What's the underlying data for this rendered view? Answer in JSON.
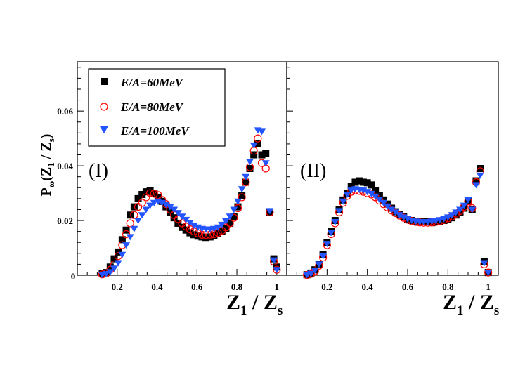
{
  "chart_data": {
    "type": "scatter",
    "ylabel_main": "P",
    "ylabel_sub": "ω",
    "ylabel_paren": "(Z",
    "ylabel_sub2": "1",
    "ylabel_rest": " / Z",
    "ylabel_sub3": "s",
    "ylabel_close": ")",
    "xlabel_main": "Z",
    "xlabel_sub": "1",
    "xlabel_mid": " / Z",
    "xlabel_sub2": "s",
    "xlim": [
      0,
      1.05
    ],
    "ylim": [
      0,
      0.078
    ],
    "y_ticks": [
      0,
      0.02,
      0.04,
      0.06
    ],
    "y_tick_labels": [
      "0",
      "0.02",
      "0.04",
      "0.06"
    ],
    "x_ticks": [
      0.2,
      0.4,
      0.6,
      0.8,
      1.0
    ],
    "x_tick_labels": [
      "0.2",
      "0.4",
      "0.6",
      "0.8",
      "1"
    ],
    "origin_label": "0",
    "legend": [
      {
        "label": "E/A=60MeV",
        "marker": "square",
        "color": "#000000"
      },
      {
        "label": "E/A=80MeV",
        "marker": "circle",
        "color": "#ff0000"
      },
      {
        "label": "E/A=100MeV",
        "marker": "triangle",
        "color": "#2255ff"
      }
    ],
    "panels": [
      {
        "label": "(I)",
        "series": [
          {
            "name": "E/A=60MeV",
            "x": [
              0.125,
              0.145,
              0.165,
              0.185,
              0.205,
              0.225,
              0.245,
              0.265,
              0.285,
              0.305,
              0.325,
              0.345,
              0.365,
              0.385,
              0.405,
              0.425,
              0.445,
              0.465,
              0.485,
              0.505,
              0.525,
              0.545,
              0.565,
              0.585,
              0.605,
              0.625,
              0.645,
              0.665,
              0.685,
              0.705,
              0.725,
              0.745,
              0.765,
              0.785,
              0.805,
              0.825,
              0.845,
              0.865,
              0.885,
              0.905,
              0.925,
              0.945,
              0.965,
              0.985,
              1.0
            ],
            "y": [
              0.0005,
              0.001,
              0.003,
              0.006,
              0.0085,
              0.013,
              0.0165,
              0.022,
              0.025,
              0.028,
              0.0295,
              0.0305,
              0.031,
              0.03,
              0.0285,
              0.027,
              0.025,
              0.023,
              0.021,
              0.019,
              0.0175,
              0.0165,
              0.0155,
              0.0148,
              0.0143,
              0.014,
              0.0138,
              0.014,
              0.0145,
              0.0153,
              0.016,
              0.017,
              0.019,
              0.0215,
              0.025,
              0.029,
              0.034,
              0.039,
              0.044,
              0.048,
              0.044,
              0.0445,
              0.023,
              0.006,
              0.003
            ]
          },
          {
            "name": "E/A=80MeV",
            "x": [
              0.125,
              0.145,
              0.165,
              0.185,
              0.205,
              0.225,
              0.245,
              0.265,
              0.285,
              0.305,
              0.325,
              0.345,
              0.365,
              0.385,
              0.405,
              0.425,
              0.445,
              0.465,
              0.485,
              0.505,
              0.525,
              0.545,
              0.565,
              0.585,
              0.605,
              0.625,
              0.645,
              0.665,
              0.685,
              0.705,
              0.725,
              0.745,
              0.765,
              0.785,
              0.805,
              0.825,
              0.845,
              0.865,
              0.885,
              0.905,
              0.925,
              0.945,
              0.965,
              0.985,
              1.0
            ],
            "y": [
              0.0003,
              0.0007,
              0.002,
              0.004,
              0.007,
              0.011,
              0.015,
              0.019,
              0.022,
              0.025,
              0.0265,
              0.0285,
              0.03,
              0.0298,
              0.0293,
              0.0275,
              0.026,
              0.024,
              0.022,
              0.0205,
              0.019,
              0.0178,
              0.0168,
              0.016,
              0.0153,
              0.0148,
              0.0147,
              0.0148,
              0.015,
              0.0155,
              0.0163,
              0.0175,
              0.019,
              0.021,
              0.0245,
              0.0285,
              0.034,
              0.0395,
              0.0455,
              0.05,
              0.041,
              0.039,
              0.023,
              0.005,
              0.002
            ]
          },
          {
            "name": "E/A=100MeV",
            "x": [
              0.125,
              0.145,
              0.165,
              0.185,
              0.205,
              0.225,
              0.245,
              0.265,
              0.285,
              0.305,
              0.325,
              0.345,
              0.365,
              0.385,
              0.405,
              0.425,
              0.445,
              0.465,
              0.485,
              0.505,
              0.525,
              0.545,
              0.565,
              0.585,
              0.605,
              0.625,
              0.645,
              0.665,
              0.685,
              0.705,
              0.725,
              0.745,
              0.765,
              0.785,
              0.805,
              0.825,
              0.845,
              0.865,
              0.885,
              0.905,
              0.925,
              0.945,
              0.965,
              0.985,
              1.0
            ],
            "y": [
              0.0002,
              0.0005,
              0.0012,
              0.0025,
              0.0045,
              0.0075,
              0.011,
              0.014,
              0.017,
              0.02,
              0.022,
              0.024,
              0.0255,
              0.0265,
              0.027,
              0.0265,
              0.0258,
              0.025,
              0.024,
              0.0228,
              0.0215,
              0.0203,
              0.0192,
              0.0182,
              0.0175,
              0.017,
              0.0168,
              0.0168,
              0.017,
              0.0175,
              0.0185,
              0.0198,
              0.0215,
              0.024,
              0.027,
              0.0315,
              0.036,
              0.0415,
              0.0475,
              0.053,
              0.0525,
              0.041,
              0.0235,
              0.0055,
              0.002
            ]
          }
        ]
      },
      {
        "label": "(II)",
        "series": [
          {
            "name": "E/A=60MeV",
            "x": [
              0.1,
              0.12,
              0.14,
              0.16,
              0.18,
              0.2,
              0.22,
              0.24,
              0.26,
              0.28,
              0.3,
              0.32,
              0.34,
              0.36,
              0.38,
              0.4,
              0.42,
              0.44,
              0.46,
              0.48,
              0.5,
              0.52,
              0.54,
              0.56,
              0.58,
              0.6,
              0.62,
              0.64,
              0.66,
              0.68,
              0.7,
              0.72,
              0.74,
              0.76,
              0.78,
              0.8,
              0.82,
              0.84,
              0.86,
              0.88,
              0.9,
              0.92,
              0.94,
              0.96,
              0.98,
              1.0
            ],
            "y": [
              0.0002,
              0.0008,
              0.002,
              0.004,
              0.0075,
              0.012,
              0.016,
              0.02,
              0.024,
              0.0275,
              0.03,
              0.0325,
              0.034,
              0.0345,
              0.034,
              0.0338,
              0.033,
              0.031,
              0.029,
              0.0275,
              0.026,
              0.0245,
              0.0232,
              0.0222,
              0.0213,
              0.0205,
              0.02,
              0.0197,
              0.0195,
              0.0195,
              0.0195,
              0.0192,
              0.0195,
              0.0197,
              0.02,
              0.0205,
              0.021,
              0.022,
              0.023,
              0.0245,
              0.027,
              0.024,
              0.0345,
              0.039,
              0.005,
              0.001
            ]
          },
          {
            "name": "E/A=80MeV",
            "x": [
              0.1,
              0.12,
              0.14,
              0.16,
              0.18,
              0.2,
              0.22,
              0.24,
              0.26,
              0.28,
              0.3,
              0.32,
              0.34,
              0.36,
              0.38,
              0.4,
              0.42,
              0.44,
              0.46,
              0.48,
              0.5,
              0.52,
              0.54,
              0.56,
              0.58,
              0.6,
              0.62,
              0.64,
              0.66,
              0.68,
              0.7,
              0.72,
              0.74,
              0.76,
              0.78,
              0.8,
              0.82,
              0.84,
              0.86,
              0.88,
              0.9,
              0.92,
              0.94,
              0.96,
              0.98,
              1.0
            ],
            "y": [
              0.0001,
              0.0005,
              0.0015,
              0.0035,
              0.0065,
              0.011,
              0.015,
              0.019,
              0.023,
              0.0265,
              0.029,
              0.0305,
              0.031,
              0.0308,
              0.0305,
              0.03,
              0.0295,
              0.0285,
              0.0273,
              0.026,
              0.0248,
              0.0237,
              0.0227,
              0.0218,
              0.021,
              0.0203,
              0.0198,
              0.0195,
              0.0193,
              0.0192,
              0.0192,
              0.0193,
              0.0195,
              0.0198,
              0.0202,
              0.0208,
              0.0215,
              0.0225,
              0.0235,
              0.025,
              0.027,
              0.0245,
              0.034,
              0.038,
              0.004,
              0.001
            ]
          },
          {
            "name": "E/A=100MeV",
            "x": [
              0.1,
              0.12,
              0.14,
              0.16,
              0.18,
              0.2,
              0.22,
              0.24,
              0.26,
              0.28,
              0.3,
              0.32,
              0.34,
              0.36,
              0.38,
              0.4,
              0.42,
              0.44,
              0.46,
              0.48,
              0.5,
              0.52,
              0.54,
              0.56,
              0.58,
              0.6,
              0.62,
              0.64,
              0.66,
              0.68,
              0.7,
              0.72,
              0.74,
              0.76,
              0.78,
              0.8,
              0.82,
              0.84,
              0.86,
              0.88,
              0.9,
              0.92,
              0.94,
              0.96,
              0.98,
              1.0
            ],
            "y": [
              0.0001,
              0.0006,
              0.0018,
              0.004,
              0.007,
              0.0115,
              0.0155,
              0.0195,
              0.0235,
              0.027,
              0.0295,
              0.031,
              0.0315,
              0.0313,
              0.031,
              0.0305,
              0.0298,
              0.0288,
              0.0277,
              0.0265,
              0.0252,
              0.024,
              0.023,
              0.022,
              0.0212,
              0.0205,
              0.02,
              0.0197,
              0.0195,
              0.0195,
              0.0195,
              0.0197,
              0.0199,
              0.0202,
              0.0206,
              0.0212,
              0.022,
              0.023,
              0.024,
              0.0255,
              0.0275,
              0.024,
              0.033,
              0.0365,
              0.0045,
              0.001
            ]
          }
        ]
      }
    ]
  }
}
